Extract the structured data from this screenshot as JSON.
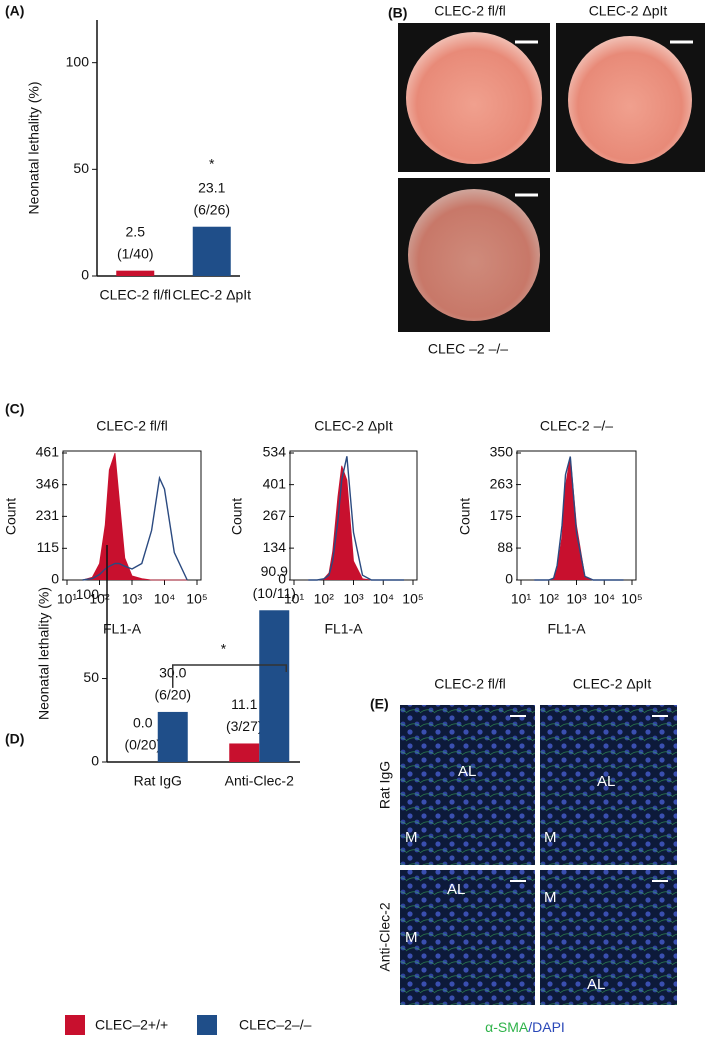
{
  "panel_labels": [
    "(A)",
    "(B)",
    "(C)",
    "(D)",
    "(E)"
  ],
  "panel_B": {
    "captions": [
      "CLEC-2 fl/fl",
      "CLEC-2 ΔpIt",
      "CLEC –2 –/–"
    ]
  },
  "panel_E": {
    "columns": [
      "CLEC-2 fl/fl",
      "CLEC-2 ΔpIt"
    ],
    "rows": [
      "Rat IgG",
      "Anti-Clec-2"
    ],
    "overlays": [
      [
        "AL",
        "M"
      ],
      [
        "AL",
        "M"
      ],
      [
        "AL",
        "M"
      ],
      [
        "M",
        "AL"
      ]
    ],
    "stain": [
      "α-SMA",
      "/DAPI"
    ]
  },
  "chart_data": [
    {
      "type": "bar",
      "categories": [
        "CLEC-2 fl/fl",
        "CLEC-2 ΔpIt"
      ],
      "values": [
        2.5,
        23.1
      ],
      "value_labels": [
        "2.5",
        "23.1"
      ],
      "fractions": [
        "(1/40)",
        "(6/26)"
      ],
      "colors": [
        "#c8102e",
        "#1f4e89"
      ],
      "ylabel": "Neonatal lethality (%)",
      "ylim": [
        0,
        120
      ],
      "yticks": [
        0,
        50,
        100
      ],
      "significance": "*"
    },
    {
      "type": "area",
      "title": "CLEC-2 fl/fl",
      "xlabel": "FL1-A",
      "ylabel": "Count",
      "xscale": "log",
      "xlim": [
        10,
        100000
      ],
      "xticks": [
        {
          "value": 10,
          "label": "10¹"
        },
        {
          "value": 100,
          "label": "10²"
        },
        {
          "value": 1000,
          "label": "10³"
        },
        {
          "value": 10000,
          "label": "10⁴"
        },
        {
          "value": 100000,
          "label": "10⁵"
        }
      ],
      "ylim": [
        0,
        461
      ],
      "yticks": [
        0,
        115,
        231,
        346,
        461
      ],
      "x": [
        30,
        60,
        100,
        150,
        200,
        300,
        400,
        600,
        1000,
        2000,
        4000,
        7000,
        10000,
        20000,
        50000
      ],
      "series": [
        {
          "color": "#c8102e",
          "filled": true,
          "values": [
            0,
            10,
            60,
            200,
            400,
            461,
            300,
            80,
            15,
            5,
            0,
            0,
            0,
            0,
            0
          ]
        },
        {
          "color": "#2b4a80",
          "filled": false,
          "values": [
            0,
            5,
            20,
            40,
            50,
            60,
            60,
            50,
            40,
            60,
            180,
            370,
            330,
            100,
            0
          ]
        }
      ]
    },
    {
      "type": "area",
      "title": "CLEC-2 ΔpIt",
      "xlabel": "FL1-A",
      "ylabel": "Count",
      "xscale": "log",
      "xlim": [
        10,
        100000
      ],
      "xticks": [
        {
          "value": 10,
          "label": "10¹"
        },
        {
          "value": 100,
          "label": "10²"
        },
        {
          "value": 1000,
          "label": "10³"
        },
        {
          "value": 10000,
          "label": "10⁴"
        },
        {
          "value": 100000,
          "label": "10⁵"
        }
      ],
      "ylim": [
        0,
        534
      ],
      "yticks": [
        0,
        134,
        267,
        401,
        534
      ],
      "x": [
        30,
        60,
        100,
        150,
        200,
        300,
        400,
        600,
        1000,
        2000,
        4000,
        7000,
        10000,
        20000,
        50000
      ],
      "series": [
        {
          "color": "#c8102e",
          "filled": true,
          "values": [
            0,
            0,
            5,
            30,
            120,
            350,
            480,
            420,
            80,
            5,
            0,
            0,
            0,
            0,
            0
          ]
        },
        {
          "color": "#2b4a80",
          "filled": false,
          "values": [
            0,
            0,
            5,
            20,
            80,
            250,
            420,
            520,
            200,
            20,
            0,
            0,
            0,
            0,
            0
          ]
        }
      ]
    },
    {
      "type": "area",
      "title": "CLEC-2 –/–",
      "xlabel": "FL1-A",
      "ylabel": "Count",
      "xscale": "log",
      "xlim": [
        10,
        100000
      ],
      "xticks": [
        {
          "value": 10,
          "label": "10¹"
        },
        {
          "value": 100,
          "label": "10²"
        },
        {
          "value": 1000,
          "label": "10³"
        },
        {
          "value": 10000,
          "label": "10⁴"
        },
        {
          "value": 100000,
          "label": "10⁵"
        }
      ],
      "ylim": [
        0,
        350
      ],
      "yticks": [
        0,
        88,
        175,
        263,
        350
      ],
      "x": [
        30,
        60,
        100,
        150,
        200,
        300,
        400,
        600,
        1000,
        2000,
        4000,
        7000,
        10000,
        20000,
        50000
      ],
      "series": [
        {
          "color": "#c8102e",
          "filled": true,
          "values": [
            0,
            0,
            0,
            5,
            30,
            120,
            260,
            340,
            150,
            10,
            0,
            0,
            0,
            0,
            0
          ]
        },
        {
          "color": "#2b4a80",
          "filled": false,
          "values": [
            0,
            0,
            0,
            5,
            40,
            150,
            290,
            340,
            130,
            10,
            0,
            0,
            0,
            0,
            0
          ]
        }
      ]
    },
    {
      "type": "bar",
      "categories": [
        "Rat IgG",
        "Anti-Clec-2"
      ],
      "ylabel": "Neonatal lethality (%)",
      "ylim": [
        0,
        130
      ],
      "yticks": [
        0,
        50,
        100
      ],
      "significance": "*",
      "legend": "bottom",
      "series": [
        {
          "name": "CLEC–2+/+",
          "color": "#c8102e",
          "values": [
            0,
            11.1
          ],
          "value_labels": [
            "0.0",
            "11.1"
          ],
          "fractions": [
            "(0/20)",
            "(3/27)"
          ]
        },
        {
          "name": "CLEC–2–/–",
          "color": "#1f4e89",
          "values": [
            30,
            90.9
          ],
          "value_labels": [
            "30.0",
            "90.9"
          ],
          "fractions": [
            "(6/20)",
            "(10/11)"
          ]
        }
      ]
    }
  ]
}
